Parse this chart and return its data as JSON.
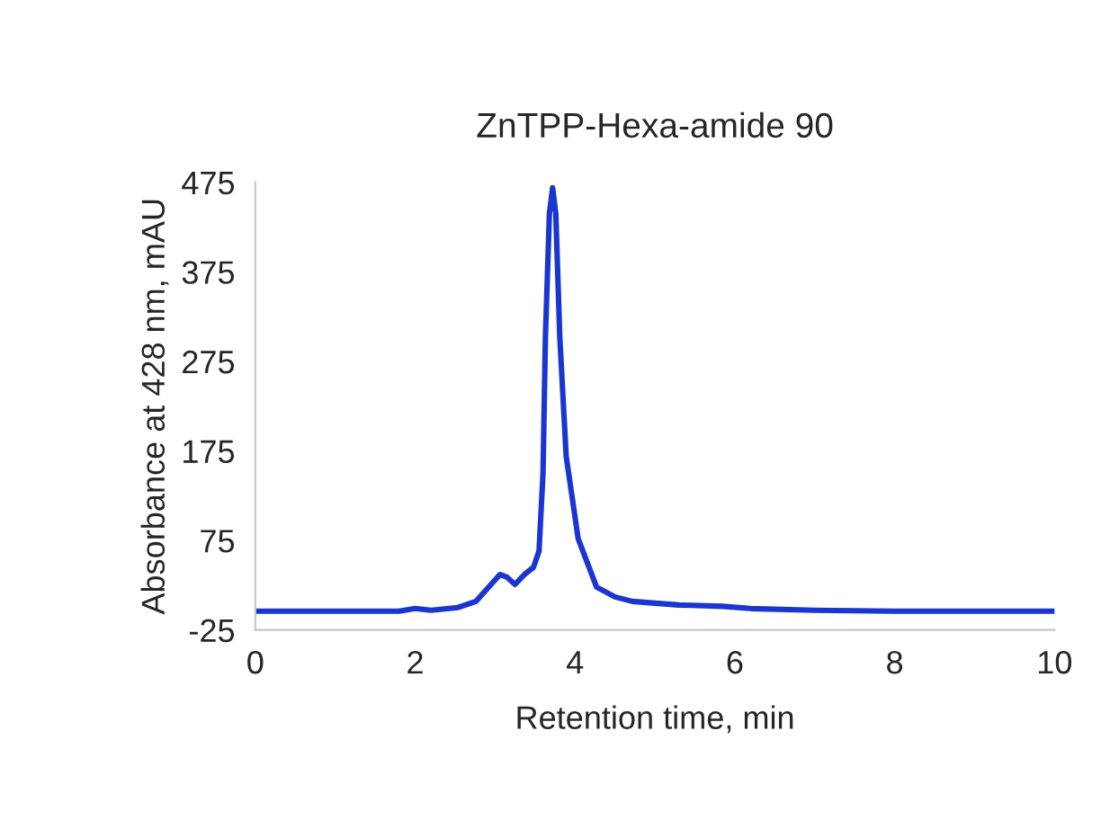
{
  "chart_data": {
    "type": "line",
    "title": "ZnTPP-Hexa-amide 90",
    "xlabel": "Retention time, min",
    "ylabel": "Absorbance at 428 nm, mAU",
    "series": [
      {
        "color": "#1a36d0",
        "x": [
          0,
          1,
          1.8,
          2.0,
          2.2,
          2.53,
          2.76,
          2.95,
          3.06,
          3.15,
          3.25,
          3.38,
          3.48,
          3.55,
          3.6,
          3.63,
          3.68,
          3.72,
          3.76,
          3.81,
          3.89,
          4.04,
          4.27,
          4.5,
          4.72,
          5.3,
          5.85,
          6.2,
          7,
          8,
          9,
          10
        ],
        "values": [
          -4,
          -4,
          -4,
          -1,
          -3,
          0,
          7,
          26,
          37,
          34,
          26,
          38,
          45,
          63,
          150,
          302,
          440,
          469,
          440,
          302,
          169,
          77,
          23,
          12,
          7,
          3,
          1.5,
          -1,
          -3,
          -4,
          -4,
          -4
        ]
      }
    ],
    "xlim": [
      0,
      10
    ],
    "xticks": [
      0,
      2,
      4,
      6,
      8,
      10
    ],
    "ylim": [
      -25,
      475
    ],
    "yticks": [
      -25,
      75,
      175,
      275,
      375,
      475
    ],
    "grid": false,
    "legend": false,
    "marker": "none",
    "line_style": "solid"
  }
}
